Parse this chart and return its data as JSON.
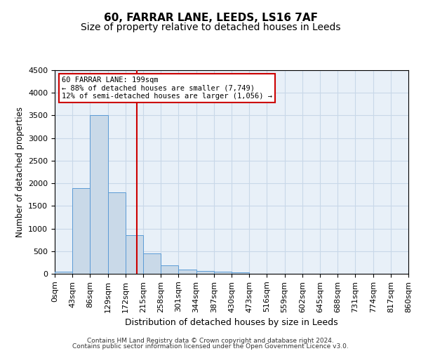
{
  "title": "60, FARRAR LANE, LEEDS, LS16 7AF",
  "subtitle": "Size of property relative to detached houses in Leeds",
  "xlabel": "Distribution of detached houses by size in Leeds",
  "ylabel": "Number of detached properties",
  "bin_edges": [
    0,
    43,
    86,
    129,
    172,
    215,
    258,
    301,
    344,
    387,
    430,
    473,
    516,
    559,
    602,
    645,
    688,
    731,
    774,
    817,
    860
  ],
  "bar_heights": [
    50,
    1900,
    3500,
    1800,
    850,
    450,
    180,
    100,
    60,
    50,
    30,
    0,
    0,
    0,
    0,
    0,
    0,
    0,
    0,
    0
  ],
  "bar_color": "#c9d9e8",
  "bar_edge_color": "#5b9bd5",
  "red_line_x": 199,
  "ylim": [
    0,
    4500
  ],
  "annotation_title": "60 FARRAR LANE: 199sqm",
  "annotation_line1": "← 88% of detached houses are smaller (7,749)",
  "annotation_line2": "12% of semi-detached houses are larger (1,056) →",
  "annotation_box_color": "#ffffff",
  "annotation_box_edge": "#cc0000",
  "red_line_color": "#cc0000",
  "grid_color": "#c8d8e8",
  "background_color": "#e8f0f8",
  "title_fontsize": 11,
  "subtitle_fontsize": 10,
  "tick_fontsize": 8,
  "footer_line1": "Contains HM Land Registry data © Crown copyright and database right 2024.",
  "footer_line2": "Contains public sector information licensed under the Open Government Licence v3.0."
}
